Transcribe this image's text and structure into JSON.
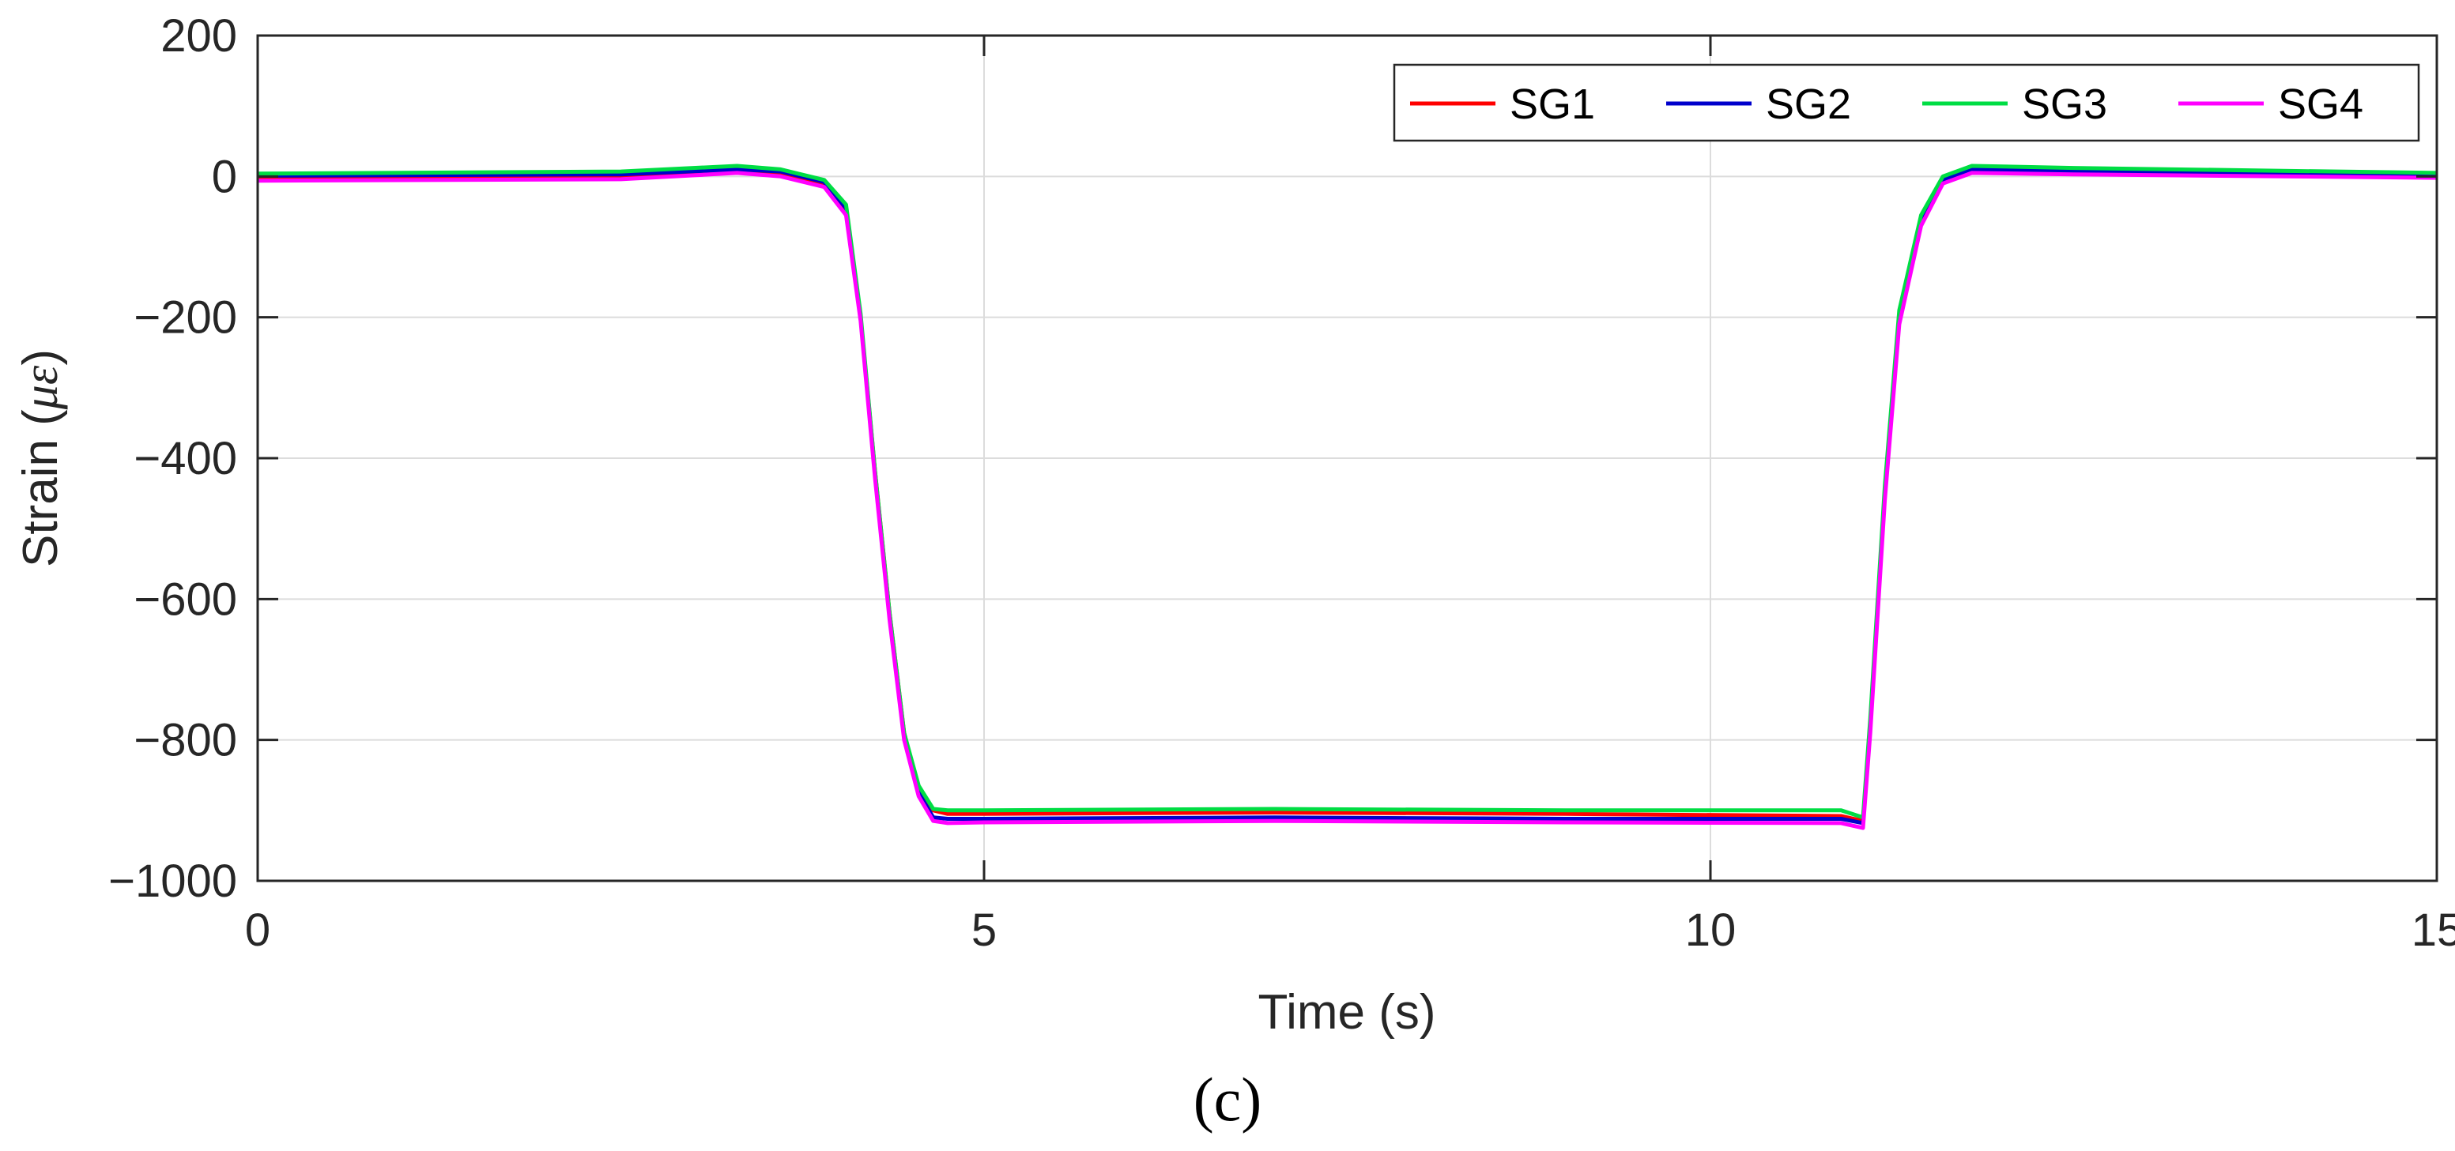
{
  "chart_data": {
    "type": "line",
    "title": "",
    "xlabel": "Time (s)",
    "ylabel_prefix": "Strain (",
    "ylabel_symbol": "με",
    "ylabel_suffix": ")",
    "xlim": [
      0,
      15
    ],
    "ylim": [
      -1000,
      200
    ],
    "xticks": [
      0,
      5,
      10,
      15
    ],
    "xtick_labels": [
      "0",
      "5",
      "10",
      "15"
    ],
    "yticks": [
      200,
      0,
      -200,
      -400,
      -600,
      -800,
      -1000
    ],
    "ytick_labels": [
      "200",
      "0",
      "−200",
      "−400",
      "−600",
      "−800",
      "−1000"
    ],
    "grid": true,
    "legend_position": "top-right",
    "caption": "(c)",
    "series": [
      {
        "name": "SG1",
        "color": "#ff0000",
        "x": [
          0,
          2.5,
          3.3,
          3.6,
          3.9,
          4.05,
          4.15,
          4.25,
          4.35,
          4.45,
          4.55,
          4.65,
          4.75,
          5.0,
          7.0,
          9.0,
          10.9,
          11.05,
          11.1,
          11.2,
          11.3,
          11.45,
          11.6,
          11.8,
          12.5,
          15
        ],
        "y": [
          -3,
          0,
          8,
          5,
          -10,
          -50,
          -200,
          -420,
          -620,
          -790,
          -870,
          -900,
          -905,
          -905,
          -903,
          -905,
          -908,
          -915,
          -780,
          -450,
          -200,
          -60,
          -5,
          8,
          6,
          2
        ]
      },
      {
        "name": "SG2",
        "color": "#0000cc",
        "x": [
          0,
          2.5,
          3.3,
          3.6,
          3.9,
          4.05,
          4.15,
          4.25,
          4.35,
          4.45,
          4.55,
          4.65,
          4.75,
          5.0,
          7.0,
          9.0,
          10.9,
          11.05,
          11.1,
          11.2,
          11.3,
          11.45,
          11.6,
          11.8,
          12.5,
          15
        ],
        "y": [
          1,
          3,
          10,
          7,
          -8,
          -45,
          -200,
          -425,
          -625,
          -795,
          -875,
          -910,
          -912,
          -912,
          -910,
          -912,
          -912,
          -918,
          -780,
          -450,
          -200,
          -60,
          -5,
          10,
          8,
          3
        ]
      },
      {
        "name": "SG3",
        "color": "#00dd44",
        "x": [
          0,
          2.5,
          3.3,
          3.6,
          3.9,
          4.05,
          4.15,
          4.25,
          4.35,
          4.45,
          4.55,
          4.65,
          4.75,
          5.0,
          7.0,
          9.0,
          10.9,
          11.05,
          11.1,
          11.2,
          11.3,
          11.45,
          11.6,
          11.8,
          12.5,
          15
        ],
        "y": [
          4,
          7,
          15,
          10,
          -5,
          -40,
          -195,
          -420,
          -620,
          -790,
          -865,
          -898,
          -900,
          -900,
          -898,
          -900,
          -900,
          -910,
          -770,
          -440,
          -190,
          -55,
          0,
          15,
          12,
          5
        ]
      },
      {
        "name": "SG4",
        "color": "#ff00ff",
        "x": [
          0,
          2.5,
          3.3,
          3.6,
          3.9,
          4.05,
          4.15,
          4.25,
          4.35,
          4.45,
          4.55,
          4.65,
          4.75,
          5.0,
          7.0,
          9.0,
          10.9,
          11.05,
          11.1,
          11.2,
          11.3,
          11.45,
          11.6,
          11.8,
          12.5,
          15
        ],
        "y": [
          -6,
          -4,
          5,
          0,
          -15,
          -55,
          -205,
          -430,
          -630,
          -800,
          -880,
          -915,
          -918,
          -917,
          -915,
          -917,
          -918,
          -925,
          -790,
          -460,
          -210,
          -70,
          -10,
          5,
          3,
          -2
        ]
      }
    ]
  }
}
